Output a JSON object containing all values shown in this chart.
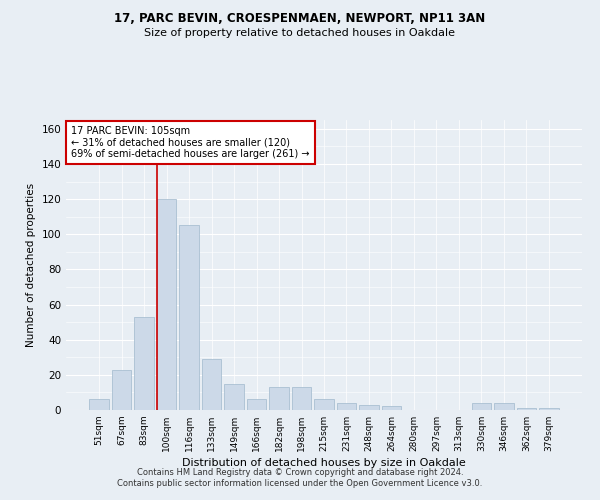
{
  "title1": "17, PARC BEVIN, CROESPENMAEN, NEWPORT, NP11 3AN",
  "title2": "Size of property relative to detached houses in Oakdale",
  "xlabel": "Distribution of detached houses by size in Oakdale",
  "ylabel": "Number of detached properties",
  "bar_color": "#ccd9e8",
  "bar_edgecolor": "#a0b8cc",
  "vline_color": "#cc0000",
  "annotation_line1": "17 PARC BEVIN: 105sqm",
  "annotation_line2": "← 31% of detached houses are smaller (120)",
  "annotation_line3": "69% of semi-detached houses are larger (261) →",
  "annotation_box_color": "#cc0000",
  "categories": [
    "51sqm",
    "67sqm",
    "83sqm",
    "100sqm",
    "116sqm",
    "133sqm",
    "149sqm",
    "166sqm",
    "182sqm",
    "198sqm",
    "215sqm",
    "231sqm",
    "248sqm",
    "264sqm",
    "280sqm",
    "297sqm",
    "313sqm",
    "330sqm",
    "346sqm",
    "362sqm",
    "379sqm"
  ],
  "values": [
    6,
    23,
    53,
    120,
    105,
    29,
    15,
    6,
    13,
    13,
    6,
    4,
    3,
    2,
    0,
    0,
    0,
    4,
    4,
    1,
    1
  ],
  "ylim": [
    0,
    165
  ],
  "yticks": [
    0,
    20,
    40,
    60,
    80,
    100,
    120,
    140,
    160
  ],
  "footer1": "Contains HM Land Registry data © Crown copyright and database right 2024.",
  "footer2": "Contains public sector information licensed under the Open Government Licence v3.0.",
  "background_color": "#e8eef4",
  "plot_background": "#e8eef4"
}
